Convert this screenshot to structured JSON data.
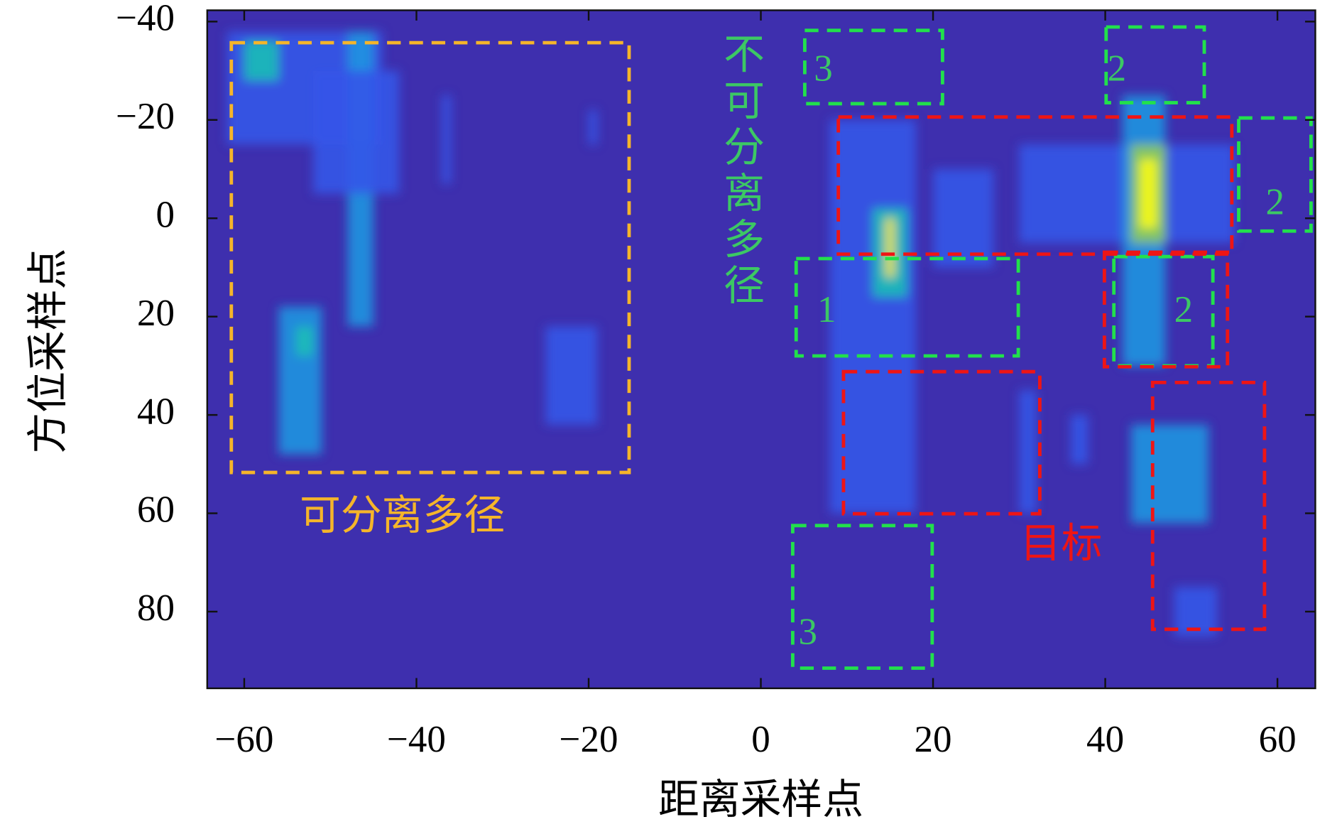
{
  "chart_data": {
    "type": "heatmap",
    "x_label": "距离采样点",
    "y_label": "方位采样点",
    "xlim": [
      -64.3,
      64.4
    ],
    "ylim": [
      -42.3,
      95.6
    ],
    "y_reversed": true,
    "xticks": [
      {
        "value": -60,
        "label": "−60"
      },
      {
        "value": -40,
        "label": "−40"
      },
      {
        "value": -20,
        "label": "−20"
      },
      0,
      20,
      40,
      60
    ],
    "yticks": [
      {
        "value": -40,
        "label": "−40"
      },
      {
        "value": -20,
        "label": "−20"
      },
      0,
      20,
      40,
      60,
      80
    ],
    "clim": [
      0,
      1
    ],
    "colormap": [
      "#3e2fae",
      "#3556e8",
      "#1f95e0",
      "#1dbfb6",
      "#8fcb54",
      "#f9e82a",
      "#f9fb0e"
    ],
    "spots": [
      {
        "x": [
          -62,
          -44
        ],
        "y": [
          -38,
          -15
        ],
        "value": 0.22
      },
      {
        "x": [
          -60,
          -56
        ],
        "y": [
          -36,
          -28
        ],
        "value": 0.45
      },
      {
        "x": [
          -48,
          -45
        ],
        "y": [
          -38,
          22
        ],
        "value": 0.3
      },
      {
        "x": [
          -52,
          -42
        ],
        "y": [
          -30,
          -5
        ],
        "value": 0.18
      },
      {
        "x": [
          -56,
          -51
        ],
        "y": [
          18,
          48
        ],
        "value": 0.28
      },
      {
        "x": [
          -54,
          -52
        ],
        "y": [
          22,
          28
        ],
        "value": 0.5
      },
      {
        "x": [
          -25,
          -19
        ],
        "y": [
          22,
          42
        ],
        "value": 0.24
      },
      {
        "x": [
          -20,
          -19
        ],
        "y": [
          -22,
          -15
        ],
        "value": 0.14
      },
      {
        "x": [
          -37,
          -36
        ],
        "y": [
          -25,
          -7
        ],
        "value": 0.14
      },
      {
        "x": [
          8,
          18
        ],
        "y": [
          -20,
          60
        ],
        "value": 0.18
      },
      {
        "x": [
          13,
          17
        ],
        "y": [
          -2,
          16
        ],
        "value": 0.55
      },
      {
        "x": [
          14.5,
          15.5
        ],
        "y": [
          0,
          12
        ],
        "value": 0.9
      },
      {
        "x": [
          20,
          27
        ],
        "y": [
          -10,
          10
        ],
        "value": 0.2
      },
      {
        "x": [
          30,
          55
        ],
        "y": [
          -15,
          5
        ],
        "value": 0.2
      },
      {
        "x": [
          42,
          47
        ],
        "y": [
          -25,
          30
        ],
        "value": 0.35
      },
      {
        "x": [
          43,
          47
        ],
        "y": [
          -15,
          5
        ],
        "value": 0.6
      },
      {
        "x": [
          44,
          46
        ],
        "y": [
          -12,
          2
        ],
        "value": 1.0
      },
      {
        "x": [
          43,
          52
        ],
        "y": [
          42,
          62
        ],
        "value": 0.3
      },
      {
        "x": [
          30,
          32
        ],
        "y": [
          35,
          60
        ],
        "value": 0.24
      },
      {
        "x": [
          36,
          38
        ],
        "y": [
          40,
          50
        ],
        "value": 0.2
      },
      {
        "x": [
          48,
          53
        ],
        "y": [
          75,
          85
        ],
        "value": 0.2
      }
    ],
    "regions": [
      {
        "color": "#f5b52a",
        "x": [
          -61.5,
          -15.3
        ],
        "y": [
          -35.7,
          51.7
        ]
      },
      {
        "color": "#22e04c",
        "x": [
          5.1,
          21.1
        ],
        "y": [
          -38.2,
          -23.3
        ]
      },
      {
        "color": "#22e04c",
        "x": [
          40.1,
          51.5
        ],
        "y": [
          -38.9,
          -23.5
        ]
      },
      {
        "color": "#22e04c",
        "x": [
          55.5,
          63.9
        ],
        "y": [
          -20.4,
          2.6
        ]
      },
      {
        "color": "#22e04c",
        "x": [
          4.1,
          29.9
        ],
        "y": [
          8.2,
          28.0
        ]
      },
      {
        "color": "#22e04c",
        "x": [
          41.0,
          52.5
        ],
        "y": [
          7.8,
          30.0
        ]
      },
      {
        "color": "#22e04c",
        "x": [
          3.7,
          19.9
        ],
        "y": [
          62.5,
          91.5
        ]
      },
      {
        "color": "#ee1515",
        "x": [
          9.0,
          54.7
        ],
        "y": [
          -20.6,
          7.3
        ]
      },
      {
        "color": "#ee1515",
        "x": [
          9.6,
          32.4
        ],
        "y": [
          31.2,
          60.1
        ]
      },
      {
        "color": "#ee1515",
        "x": [
          39.9,
          54.2
        ],
        "y": [
          6.9,
          30.2
        ]
      },
      {
        "color": "#ee1515",
        "x": [
          45.5,
          58.5
        ],
        "y": [
          33.4,
          83.6
        ]
      }
    ],
    "annotations": [
      {
        "text": "可分离多径",
        "color": "#f5b52a"
      },
      {
        "text": "不可分离多径",
        "color": "#3cc864"
      },
      {
        "text": "目标",
        "color": "#ee1515"
      },
      {
        "text": "3",
        "color": "#3cc864"
      },
      {
        "text": "2",
        "color": "#3cc864"
      },
      {
        "text": "2",
        "color": "#3cc864"
      },
      {
        "text": "1",
        "color": "#3cc864"
      },
      {
        "text": "2",
        "color": "#3cc864"
      },
      {
        "text": "3",
        "color": "#3cc864"
      }
    ]
  }
}
